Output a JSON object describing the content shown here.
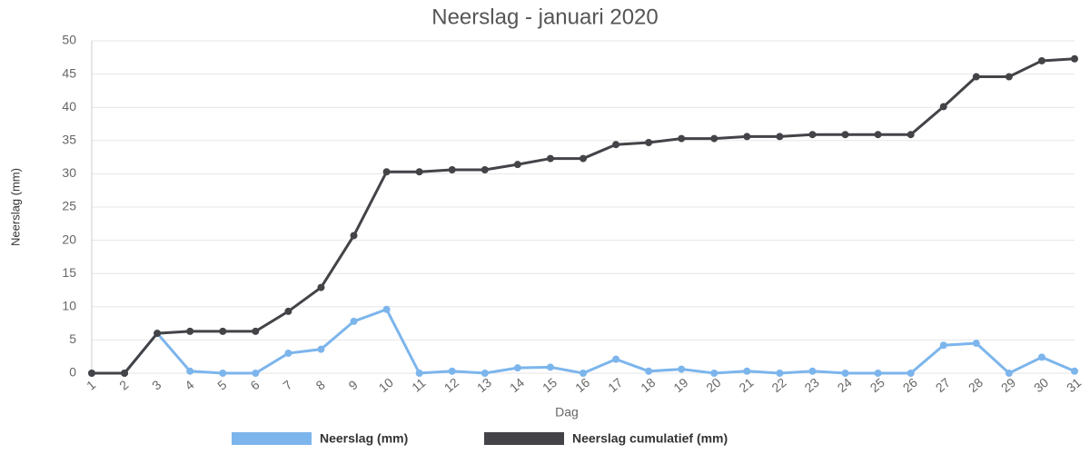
{
  "chart_data": {
    "type": "line",
    "title": "Neerslag - januari 2020",
    "x_label": "Dag",
    "y_label": "Neerslag (mm)",
    "categories": [
      "1",
      "2",
      "3",
      "4",
      "5",
      "6",
      "7",
      "8",
      "9",
      "10",
      "11",
      "12",
      "13",
      "14",
      "15",
      "16",
      "17",
      "18",
      "19",
      "20",
      "21",
      "22",
      "23",
      "24",
      "25",
      "26",
      "27",
      "28",
      "29",
      "30",
      "31"
    ],
    "series": [
      {
        "name": "Neerslag (mm)",
        "color": "#7cb5ec",
        "values": [
          0,
          0,
          6,
          0.3,
          0,
          0,
          3,
          3.6,
          7.8,
          9.6,
          0,
          0.3,
          0,
          0.8,
          0.9,
          0,
          2.1,
          0.3,
          0.6,
          0,
          0.3,
          0,
          0.3,
          0,
          0,
          0,
          4.2,
          4.5,
          0,
          2.4,
          0.3
        ]
      },
      {
        "name": "Neerslag cumulatief (mm)",
        "color": "#434348",
        "values": [
          0,
          0,
          6,
          6.3,
          6.3,
          6.3,
          9.3,
          12.9,
          20.7,
          30.3,
          30.3,
          30.6,
          30.6,
          31.4,
          32.3,
          32.3,
          34.4,
          34.7,
          35.3,
          35.3,
          35.6,
          35.6,
          35.9,
          35.9,
          35.9,
          35.9,
          40.1,
          44.6,
          44.6,
          47.0,
          47.3
        ]
      }
    ],
    "ylim": [
      0,
      50
    ],
    "yticks": [
      0,
      5,
      10,
      15,
      20,
      25,
      30,
      35,
      40,
      45,
      50
    ],
    "grid": true
  }
}
